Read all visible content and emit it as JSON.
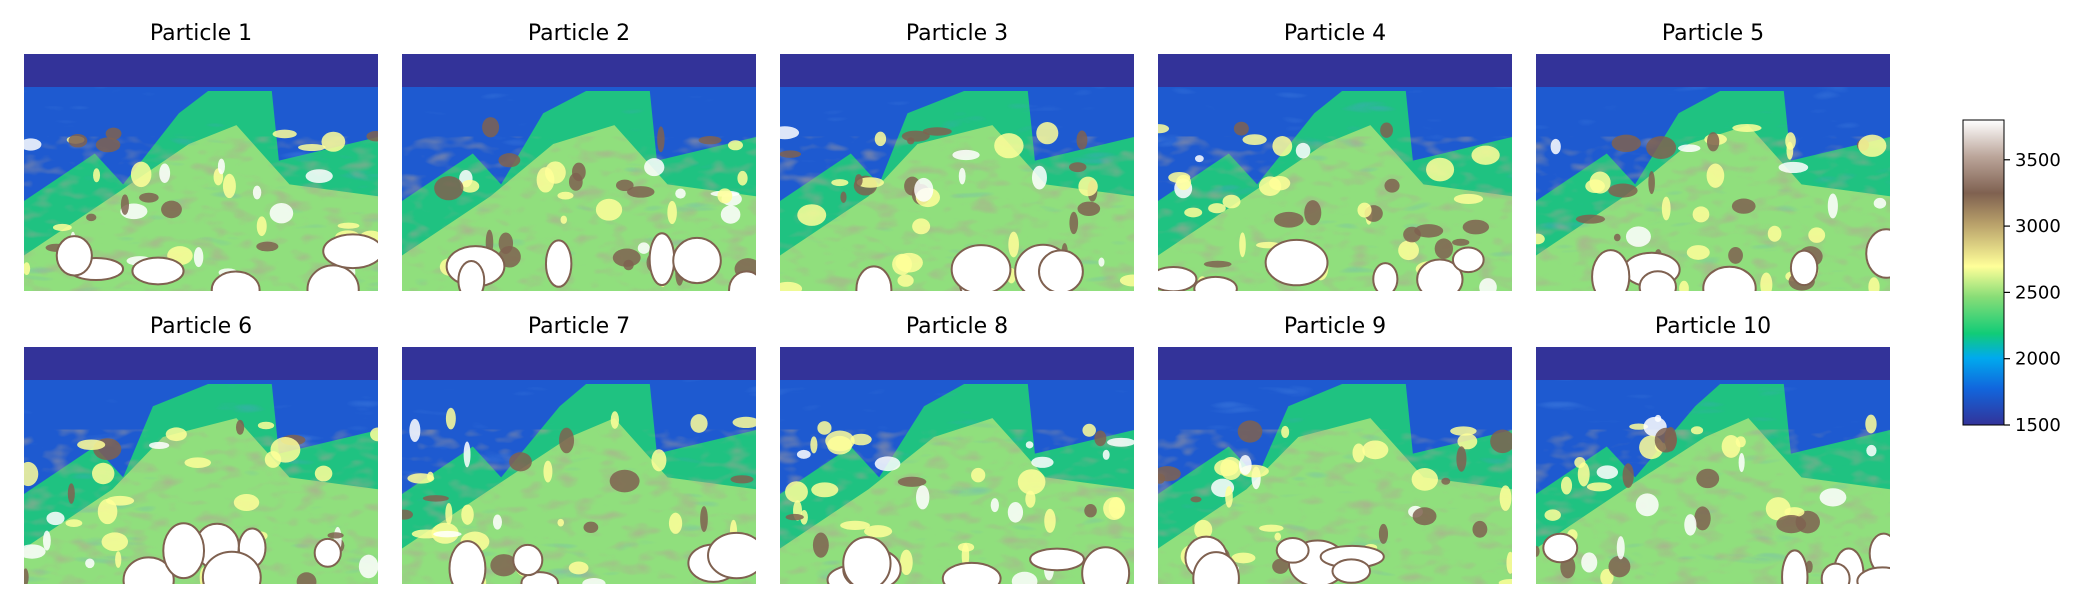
{
  "chart_data": {
    "type": "heatmap",
    "title": "",
    "panels": [
      {
        "title": "Particle 1"
      },
      {
        "title": "Particle 2"
      },
      {
        "title": "Particle 3"
      },
      {
        "title": "Particle 4"
      },
      {
        "title": "Particle 5"
      },
      {
        "title": "Particle 6"
      },
      {
        "title": "Particle 7"
      },
      {
        "title": "Particle 8"
      },
      {
        "title": "Particle 9"
      },
      {
        "title": "Particle 10"
      }
    ],
    "grid_rows": 2,
    "grid_cols": 5,
    "colorbar": {
      "vmin": 1500,
      "vmax": 3800,
      "ticks": [
        1500,
        2000,
        2500,
        3000,
        3500
      ],
      "tick_labels": [
        "1500",
        "2000",
        "2500",
        "3000",
        "3500"
      ],
      "colormap": "terrain"
    },
    "colors": {
      "water_layer": "#333399",
      "low": "#1E5AD0",
      "mid_low": "#1FC281",
      "mid": "#A5E47C",
      "mid_high": "#FFFF99",
      "high": "#7F6150",
      "max": "#FFFFFF"
    }
  }
}
